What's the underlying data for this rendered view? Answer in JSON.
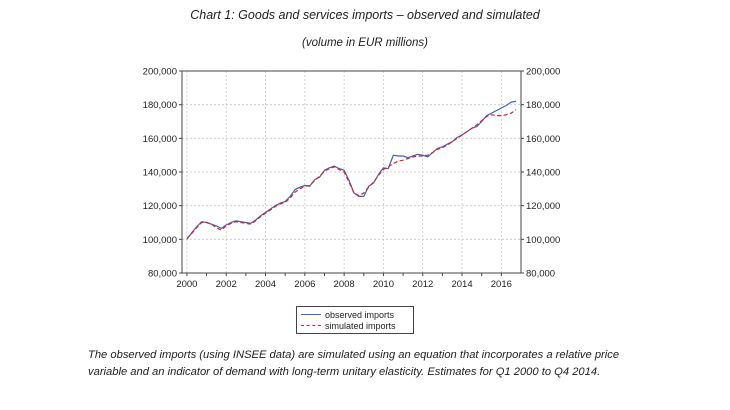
{
  "title": "Chart 1: Goods and services imports – observed and simulated",
  "subtitle": "(volume in EUR millions)",
  "caption": "The observed imports (using INSEE data) are simulated using an equation that incorporates a relative price variable and an indicator of demand with long-term unitary elasticity. Estimates for Q1 2000 to Q4 2014.",
  "colors": {
    "observed": "#3465c8",
    "simulated": "#e0201b",
    "axis": "#444444"
  },
  "chart_data": {
    "type": "line",
    "xlabel": "",
    "ylabel": "",
    "xlim": [
      1999.75,
      2017.0
    ],
    "ylim": [
      80000,
      200000
    ],
    "x_ticks": [
      2000,
      2002,
      2004,
      2006,
      2008,
      2010,
      2012,
      2014,
      2016
    ],
    "y_ticks": [
      80000,
      100000,
      120000,
      140000,
      160000,
      180000,
      200000
    ],
    "y_tick_labels": [
      "80,000",
      "100,000",
      "120,000",
      "140,000",
      "160,000",
      "180,000",
      "200,000"
    ],
    "dual_y_axis": true,
    "grid": true,
    "legend_position": "bottom-center",
    "x": [
      2000.0,
      2000.25,
      2000.5,
      2000.75,
      2001.0,
      2001.25,
      2001.5,
      2001.75,
      2002.0,
      2002.25,
      2002.5,
      2002.75,
      2003.0,
      2003.25,
      2003.5,
      2003.75,
      2004.0,
      2004.25,
      2004.5,
      2004.75,
      2005.0,
      2005.25,
      2005.5,
      2005.75,
      2006.0,
      2006.25,
      2006.5,
      2006.75,
      2007.0,
      2007.25,
      2007.5,
      2007.75,
      2008.0,
      2008.25,
      2008.5,
      2008.75,
      2009.0,
      2009.25,
      2009.5,
      2009.75,
      2010.0,
      2010.25,
      2010.5,
      2010.75,
      2011.0,
      2011.25,
      2011.5,
      2011.75,
      2012.0,
      2012.25,
      2012.5,
      2012.75,
      2013.0,
      2013.25,
      2013.5,
      2013.75,
      2014.0,
      2014.25,
      2014.5,
      2014.75,
      2015.0,
      2015.25,
      2015.5,
      2015.75,
      2016.0,
      2016.25,
      2016.5,
      2016.75
    ],
    "series": [
      {
        "name": "observed imports",
        "values": [
          100000,
          104000,
          107500,
          110500,
          110000,
          109000,
          108000,
          106500,
          108500,
          110000,
          111000,
          110500,
          110000,
          109500,
          111500,
          114000,
          116000,
          118000,
          120000,
          121500,
          122500,
          125500,
          129500,
          131000,
          132000,
          131500,
          135500,
          137000,
          141000,
          142500,
          143500,
          142000,
          141000,
          135000,
          127500,
          125500,
          125500,
          131500,
          133500,
          138500,
          142500,
          142000,
          150000,
          149500,
          149500,
          148500,
          149500,
          150500,
          150000,
          149000,
          151500,
          154000,
          155000,
          156500,
          158000,
          160500,
          162000,
          164000,
          166000,
          167000,
          170000,
          173500,
          175000,
          176500,
          178000,
          179500,
          181500,
          182000
        ]
      },
      {
        "name": "simulated imports",
        "values": [
          100500,
          103500,
          107000,
          110000,
          110000,
          109000,
          107000,
          105500,
          108000,
          109500,
          110500,
          110000,
          109500,
          109000,
          111000,
          113500,
          115500,
          117500,
          119500,
          121000,
          122000,
          124500,
          128000,
          130000,
          131500,
          132000,
          135000,
          137500,
          140500,
          142000,
          143000,
          141500,
          140000,
          134000,
          127500,
          126000,
          127500,
          131000,
          134000,
          138000,
          141500,
          143000,
          145000,
          146500,
          147000,
          148000,
          149000,
          149500,
          149500,
          150000,
          151500,
          153500,
          154500,
          156000,
          158000,
          160000,
          162000,
          164000,
          166000,
          168000,
          170500,
          173000,
          174000,
          173500,
          173500,
          174000,
          175000,
          177000
        ]
      }
    ]
  }
}
